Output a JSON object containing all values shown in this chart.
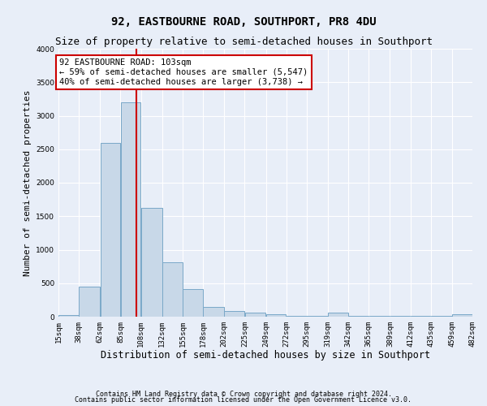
{
  "title": "92, EASTBOURNE ROAD, SOUTHPORT, PR8 4DU",
  "subtitle": "Size of property relative to semi-detached houses in Southport",
  "xlabel": "Distribution of semi-detached houses by size in Southport",
  "ylabel": "Number of semi-detached properties",
  "bin_edges": [
    15,
    38,
    62,
    85,
    108,
    132,
    155,
    178,
    202,
    225,
    249,
    272,
    295,
    319,
    342,
    365,
    389,
    412,
    435,
    459,
    482
  ],
  "bar_heights": [
    30,
    450,
    2600,
    3200,
    1630,
    810,
    410,
    150,
    80,
    65,
    35,
    15,
    10,
    60,
    10,
    10,
    10,
    10,
    10,
    40
  ],
  "bar_color": "#c8d8e8",
  "bar_edge_color": "#7aa8c8",
  "property_size": 103,
  "red_line_color": "#cc0000",
  "annotation_line1": "92 EASTBOURNE ROAD: 103sqm",
  "annotation_line2": "← 59% of semi-detached houses are smaller (5,547)",
  "annotation_line3": "40% of semi-detached houses are larger (3,738) →",
  "annotation_box_color": "#ffffff",
  "annotation_box_edge_color": "#cc0000",
  "ylim": [
    0,
    4000
  ],
  "background_color": "#e8eef8",
  "grid_color": "#ffffff",
  "footnote1": "Contains HM Land Registry data © Crown copyright and database right 2024.",
  "footnote2": "Contains public sector information licensed under the Open Government Licence v3.0.",
  "title_fontsize": 10,
  "subtitle_fontsize": 9,
  "xlabel_fontsize": 8.5,
  "ylabel_fontsize": 8,
  "annotation_fontsize": 7.5,
  "tick_fontsize": 6.5,
  "footnote_fontsize": 6
}
